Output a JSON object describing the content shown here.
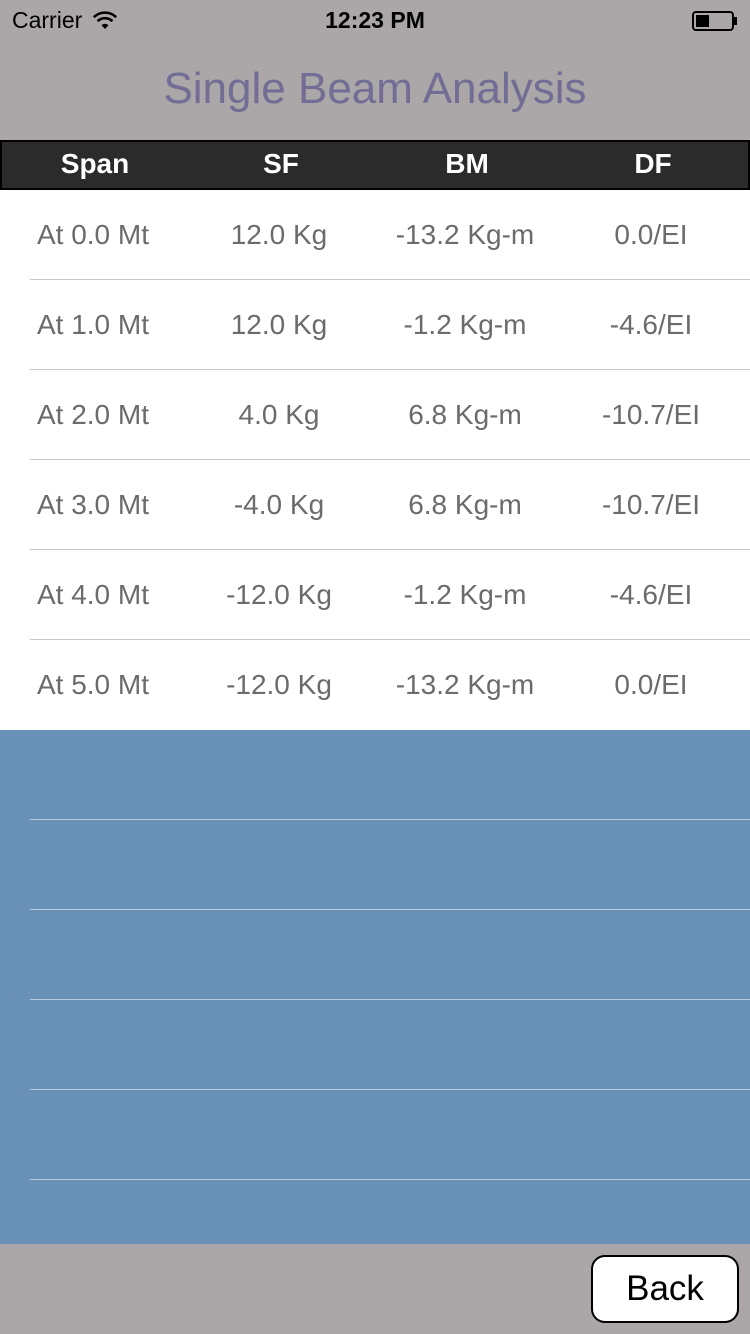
{
  "status_bar": {
    "carrier": "Carrier",
    "time": "12:23 PM"
  },
  "title": "Single Beam Analysis",
  "table": {
    "headers": [
      "Span",
      "SF",
      "BM",
      "DF"
    ],
    "rows": [
      [
        "At 0.0 Mt",
        "12.0 Kg",
        "-13.2 Kg-m",
        "0.0/EI"
      ],
      [
        "At 1.0 Mt",
        "12.0 Kg",
        "-1.2 Kg-m",
        "-4.6/EI"
      ],
      [
        "At 2.0 Mt",
        "4.0 Kg",
        "6.8 Kg-m",
        "-10.7/EI"
      ],
      [
        "At 3.0 Mt",
        "-4.0 Kg",
        "6.8 Kg-m",
        "-10.7/EI"
      ],
      [
        "At 4.0 Mt",
        "-12.0 Kg",
        "-1.2 Kg-m",
        "-4.6/EI"
      ],
      [
        "At 5.0 Mt",
        "-12.0 Kg",
        "-13.2 Kg-m",
        "0.0/EI"
      ]
    ]
  },
  "back_button_label": "Back",
  "colors": {
    "background": "#aba6a7",
    "title": "#716d94",
    "table_empty": "#6a91b7",
    "header": "#2b2b2b"
  }
}
